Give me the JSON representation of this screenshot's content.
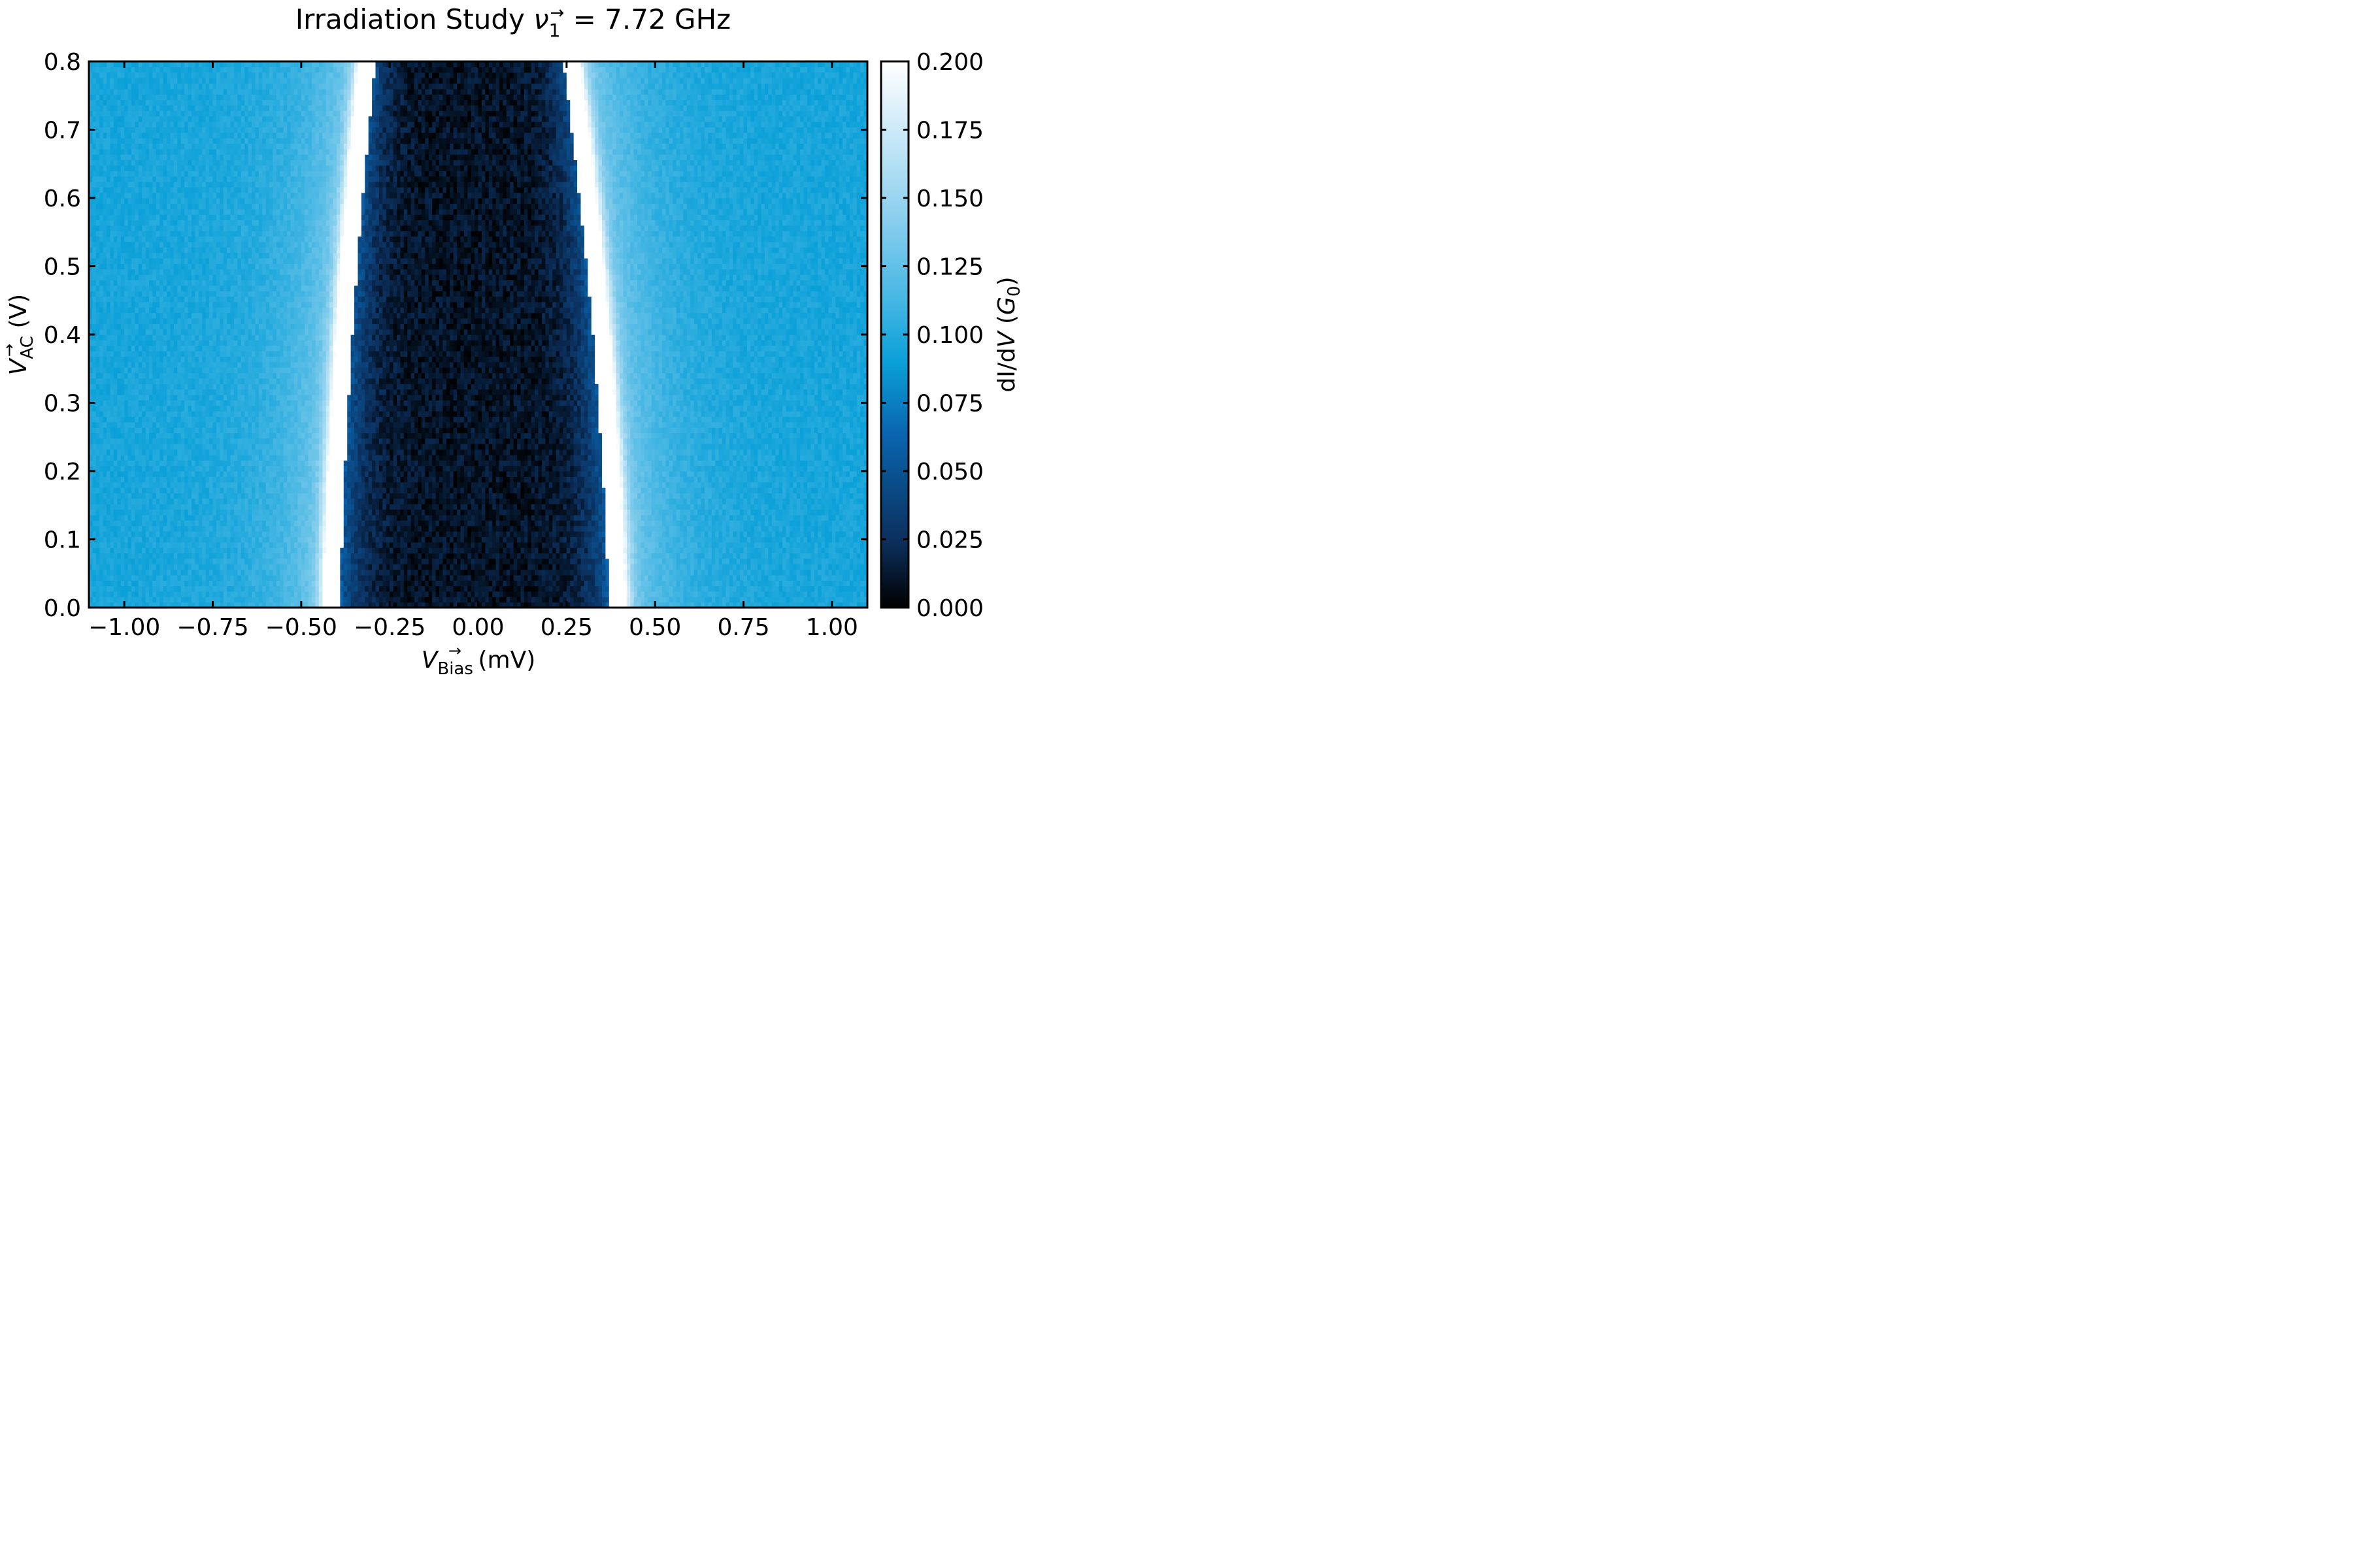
{
  "chart_data": {
    "type": "heatmap",
    "title": {
      "prefix": "Irradiation Study ",
      "symbol": "ν",
      "symbol_sub": "1",
      "symbol_sup": "→",
      "suffix": " = 7.72 GHz"
    },
    "xlabel": {
      "symbol": "V",
      "sub": "Bias",
      "sup": "→",
      "unit": " (mV)"
    },
    "ylabel": {
      "symbol": "V",
      "sub": "AC",
      "sup": "→",
      "unit": " (V)"
    },
    "colorbar_label": {
      "prefix": "dI/d",
      "symbol": "V",
      "mid": " (",
      "unit_symbol": "G",
      "unit_sub": "0",
      "suffix": ")"
    },
    "xlim": [
      -1.1,
      1.1
    ],
    "ylim": [
      0.0,
      0.8
    ],
    "clim": [
      0.0,
      0.2
    ],
    "colormap": "blue-to-white",
    "colormap_stops": [
      "#000000",
      "#0b2f5c",
      "#0a66b0",
      "#0aa0d8",
      "#3fb4e2",
      "#8ed0ee",
      "#ffffff"
    ],
    "x_ticks": [
      {
        "value": -1.0,
        "label": "−1.00"
      },
      {
        "value": -0.75,
        "label": "−0.75"
      },
      {
        "value": -0.5,
        "label": "−0.50"
      },
      {
        "value": -0.25,
        "label": "−0.25"
      },
      {
        "value": 0.0,
        "label": "0.00"
      },
      {
        "value": 0.25,
        "label": "0.25"
      },
      {
        "value": 0.5,
        "label": "0.50"
      },
      {
        "value": 0.75,
        "label": "0.75"
      },
      {
        "value": 1.0,
        "label": "1.00"
      }
    ],
    "y_ticks": [
      {
        "value": 0.0,
        "label": "0.0"
      },
      {
        "value": 0.1,
        "label": "0.1"
      },
      {
        "value": 0.2,
        "label": "0.2"
      },
      {
        "value": 0.3,
        "label": "0.3"
      },
      {
        "value": 0.4,
        "label": "0.4"
      },
      {
        "value": 0.5,
        "label": "0.5"
      },
      {
        "value": 0.6,
        "label": "0.6"
      },
      {
        "value": 0.7,
        "label": "0.7"
      },
      {
        "value": 0.8,
        "label": "0.8"
      }
    ],
    "colorbar_ticks": [
      {
        "value": 0.0,
        "label": "0.000"
      },
      {
        "value": 0.025,
        "label": "0.025"
      },
      {
        "value": 0.05,
        "label": "0.050"
      },
      {
        "value": 0.075,
        "label": "0.075"
      },
      {
        "value": 0.1,
        "label": "0.100"
      },
      {
        "value": 0.125,
        "label": "0.125"
      },
      {
        "value": 0.15,
        "label": "0.150"
      },
      {
        "value": 0.175,
        "label": "0.175"
      },
      {
        "value": 0.2,
        "label": "0.200"
      }
    ],
    "features": {
      "background_level": 0.095,
      "gap_edge_at_ymin": [
        -0.41,
        0.39
      ],
      "gap_edge_at_ymax": [
        -0.31,
        0.26
      ],
      "peak_level": 0.2,
      "inner_gap_level": 0.01
    }
  }
}
